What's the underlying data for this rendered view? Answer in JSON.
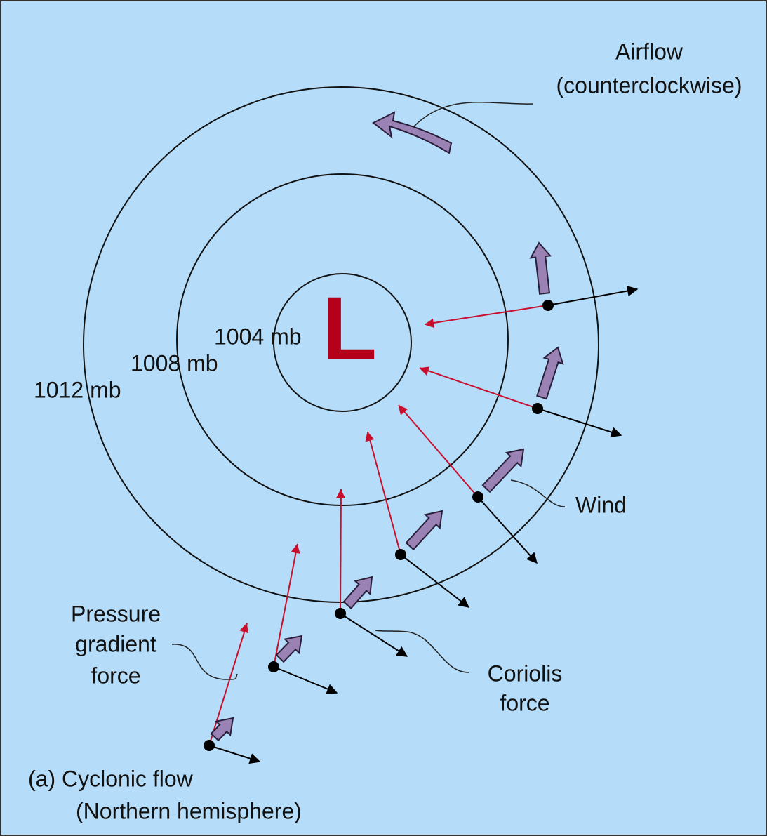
{
  "airflow_label": {
    "line1": "Airflow",
    "line2": "(counterclockwise)"
  },
  "center_label": "L",
  "isobars": [
    {
      "label": "1004 mb"
    },
    {
      "label": "1008 mb"
    },
    {
      "label": "1012 mb"
    }
  ],
  "wind_label": "Wind",
  "pressure_gradient_label": {
    "line1": "Pressure",
    "line2": "gradient",
    "line3": "force"
  },
  "coriolis_label": {
    "line1": "Coriolis",
    "line2": "force"
  },
  "caption": {
    "line1": "(a) Cyclonic flow",
    "line2": "(Northern hemisphere)"
  }
}
